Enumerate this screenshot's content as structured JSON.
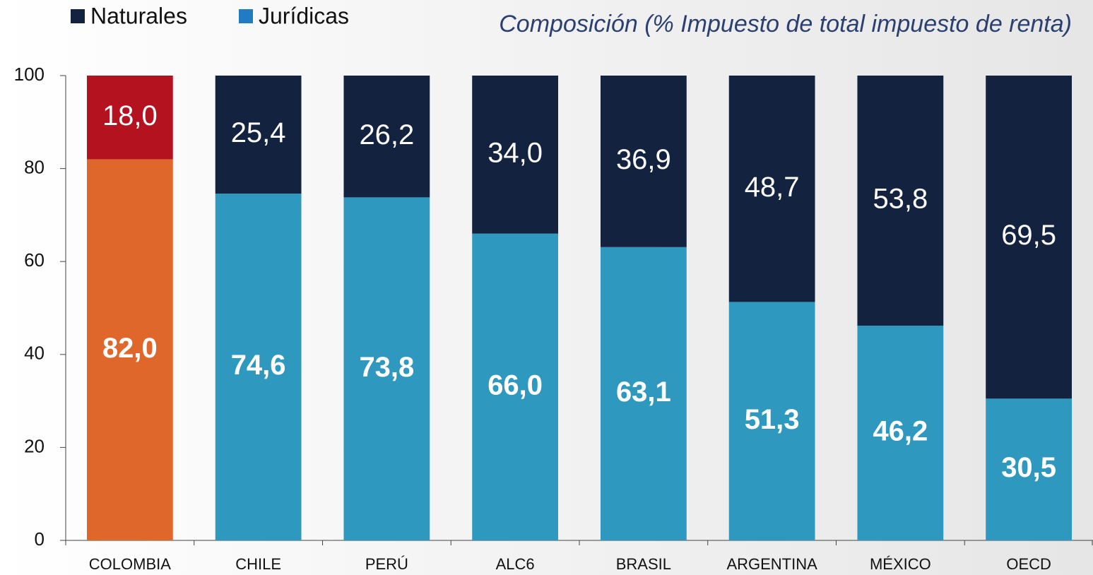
{
  "chart_data": {
    "type": "stacked_bar",
    "title": "Composición (% Impuesto de total impuesto de renta)",
    "categories": [
      "COLOMBIA",
      "CHILE",
      "PERÚ",
      "ALC6",
      "BRASIL",
      "ARGENTINA",
      "MÉXICO",
      "OECD"
    ],
    "series": [
      {
        "name": "Naturales",
        "color": "#13233f",
        "colors": [
          "#b5121f",
          "#13233f",
          "#13233f",
          "#13233f",
          "#13233f",
          "#13233f",
          "#13233f",
          "#13233f"
        ],
        "values": [
          18.0,
          25.4,
          26.2,
          34.0,
          36.9,
          48.7,
          53.8,
          69.5
        ],
        "value_labels": [
          "18,0",
          "25,4",
          "26,2",
          "34,0",
          "36,9",
          "48,7",
          "53,8",
          "69,5"
        ]
      },
      {
        "name": "Jurídicas",
        "color": "#1f7bc4",
        "colors": [
          "#e0672c",
          "#2e98be",
          "#2e98be",
          "#2e98be",
          "#2e98be",
          "#2e98be",
          "#2e98be",
          "#2e98be"
        ],
        "values": [
          82.0,
          74.6,
          73.8,
          66.0,
          63.1,
          51.3,
          46.2,
          30.5
        ],
        "value_labels": [
          "82,0",
          "74,6",
          "73,8",
          "66,0",
          "63,1",
          "51,3",
          "46,2",
          "30,5"
        ]
      }
    ],
    "ylim": [
      0,
      100
    ],
    "yticks": [
      0,
      20,
      40,
      60,
      80,
      100
    ]
  }
}
